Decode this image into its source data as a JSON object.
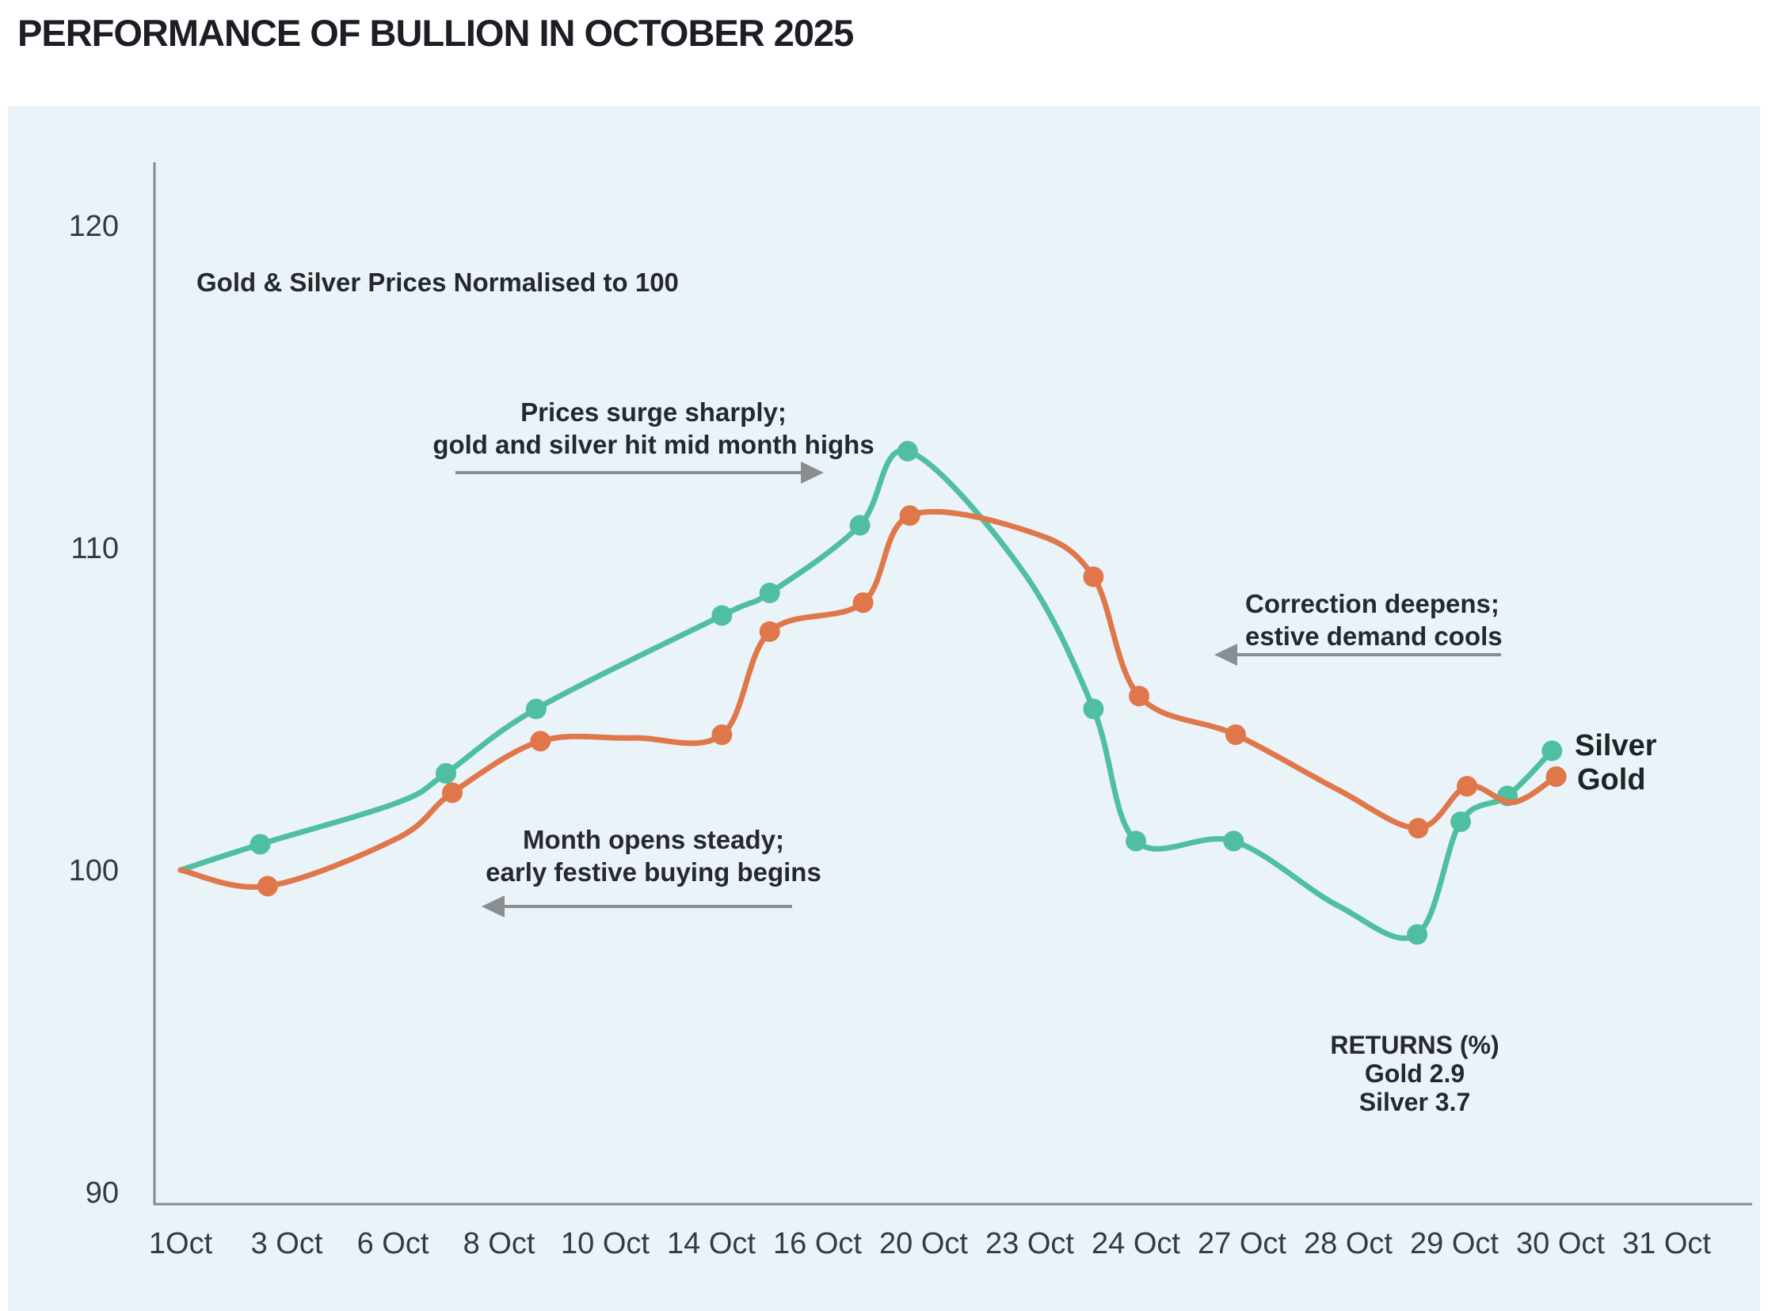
{
  "header": {
    "title": "PERFORMANCE OF BULLION IN OCTOBER 2025"
  },
  "chart_data": {
    "type": "line",
    "title": "PERFORMANCE OF BULLION IN OCTOBER 2025",
    "subtitle": "Gold & Silver Prices Normalised to 100",
    "categories": [
      "1Oct",
      "3 Oct",
      "6 Oct",
      "8 Oct",
      "10 Oct",
      "14 Oct",
      "16 Oct",
      "20 Oct",
      "23 Oct",
      "24 Oct",
      "27 Oct",
      "28 Oct",
      "29 Oct",
      "30 Oct",
      "31 Oct"
    ],
    "yticks": [
      120,
      110,
      100,
      90
    ],
    "ylim": [
      88,
      122
    ],
    "grid": false,
    "legend_position": "end-of-line",
    "x_unit": "category index (0 = 1Oct); fractional values sit between tick labels",
    "point_format": [
      "x_index",
      "value",
      "has_marker"
    ],
    "series": [
      {
        "name": "Silver",
        "color": "#50BFA1",
        "final_value": 103.7,
        "points": [
          [
            0.0,
            100.0,
            false
          ],
          [
            0.75,
            100.8,
            true
          ],
          [
            2.05,
            102.1,
            false
          ],
          [
            2.5,
            103.0,
            true
          ],
          [
            3.35,
            105.0,
            true
          ],
          [
            5.1,
            107.9,
            true
          ],
          [
            5.55,
            108.6,
            true
          ],
          [
            6.4,
            110.7,
            true
          ],
          [
            6.85,
            113.0,
            true
          ],
          [
            7.93,
            109.3,
            false
          ],
          [
            8.6,
            105.0,
            true
          ],
          [
            9.0,
            100.9,
            true
          ],
          [
            9.92,
            100.9,
            true
          ],
          [
            10.9,
            98.9,
            false
          ],
          [
            11.65,
            98.0,
            true
          ],
          [
            12.06,
            101.5,
            true
          ],
          [
            12.5,
            102.3,
            true
          ],
          [
            12.92,
            103.7,
            true
          ]
        ]
      },
      {
        "name": "Gold",
        "color": "#E0774B",
        "final_value": 102.9,
        "points": [
          [
            0.0,
            100.0,
            false
          ],
          [
            0.82,
            99.5,
            true
          ],
          [
            2.05,
            101.0,
            false
          ],
          [
            2.56,
            102.4,
            true
          ],
          [
            3.39,
            104.0,
            true
          ],
          [
            4.25,
            104.1,
            false
          ],
          [
            5.1,
            104.2,
            true
          ],
          [
            5.55,
            107.4,
            true
          ],
          [
            6.43,
            108.3,
            true
          ],
          [
            6.87,
            111.0,
            true
          ],
          [
            8.0,
            110.5,
            false
          ],
          [
            8.6,
            109.1,
            true
          ],
          [
            9.03,
            105.4,
            true
          ],
          [
            9.94,
            104.2,
            true
          ],
          [
            10.9,
            102.5,
            false
          ],
          [
            11.66,
            101.3,
            true
          ],
          [
            12.12,
            102.6,
            true
          ],
          [
            12.55,
            102.1,
            false
          ],
          [
            12.96,
            102.9,
            true
          ]
        ]
      }
    ],
    "annotations": {
      "surge": {
        "line1": "Prices surge sharply;",
        "line2": "gold and silver hit mid month highs"
      },
      "correction": {
        "line1": "Correction deepens;",
        "line2": "estive demand cools"
      },
      "open": {
        "line1": "Month opens steady;",
        "line2": "early festive buying begins"
      }
    },
    "returns": {
      "title": "RETURNS (%)",
      "gold": "Gold 2.9",
      "silver": "Silver 3.7"
    },
    "colors": {
      "card_bg": "#EAF4F8",
      "axis": "#85898E",
      "arrow": "#8A8E93",
      "tick_text": "#36393F",
      "annotation_text": "#26282E"
    }
  }
}
